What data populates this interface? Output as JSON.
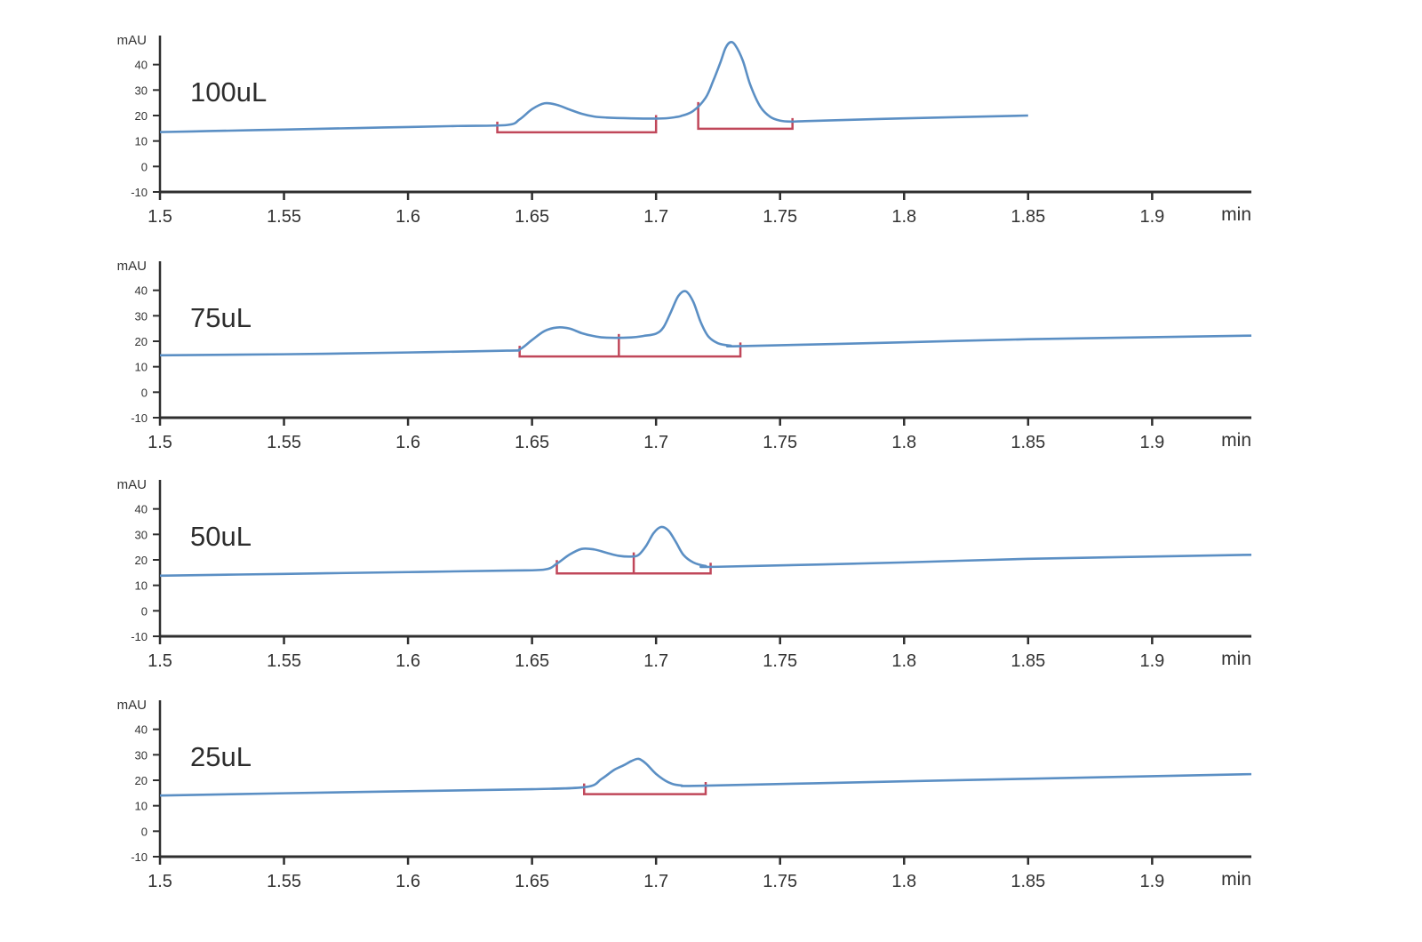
{
  "colors": {
    "trace": "#5b8fc4",
    "integration": "#c0475a",
    "axis": "#2f2f2f",
    "text": "#333333"
  },
  "chart_data": [
    {
      "type": "line",
      "label": "100uL",
      "ylabel": "mAU",
      "xlabel": "min",
      "xlim": [
        1.5,
        1.94
      ],
      "ylim": [
        -10,
        50
      ],
      "x_ticks": [
        "1.5",
        "1.55",
        "1.6",
        "1.65",
        "1.7",
        "1.75",
        "1.8",
        "1.85",
        "1.9"
      ],
      "y_ticks": [
        "-10",
        "0",
        "10",
        "20",
        "30",
        "40"
      ],
      "x": [
        1.5,
        1.52,
        1.54,
        1.56,
        1.58,
        1.6,
        1.62,
        1.64,
        1.645,
        1.65,
        1.655,
        1.66,
        1.665,
        1.67,
        1.675,
        1.68,
        1.69,
        1.7,
        1.705,
        1.71,
        1.715,
        1.72,
        1.723,
        1.726,
        1.728,
        1.73,
        1.732,
        1.735,
        1.738,
        1.742,
        1.746,
        1.75,
        1.755,
        1.76,
        1.8,
        1.85
      ],
      "y": [
        13.5,
        13.9,
        14.3,
        14.7,
        15.1,
        15.5,
        15.9,
        16.3,
        18.5,
        22.5,
        24.8,
        24.2,
        22.4,
        20.7,
        19.6,
        19.2,
        18.9,
        18.8,
        19.0,
        19.8,
        21.8,
        27.0,
        33.5,
        41.0,
        46.5,
        48.8,
        47.5,
        41.5,
        32.0,
        23.5,
        19.5,
        18.0,
        17.6,
        17.8,
        18.9,
        20.0
      ],
      "integration": [
        {
          "start": 1.636,
          "end": 1.7,
          "split": null
        },
        {
          "start": 1.717,
          "end": 1.755,
          "split": null
        }
      ]
    },
    {
      "type": "line",
      "label": "75uL",
      "ylabel": "mAU",
      "xlabel": "min",
      "xlim": [
        1.5,
        1.94
      ],
      "ylim": [
        -10,
        50
      ],
      "x_ticks": [
        "1.5",
        "1.55",
        "1.6",
        "1.65",
        "1.7",
        "1.75",
        "1.8",
        "1.85",
        "1.9"
      ],
      "y_ticks": [
        "-10",
        "0",
        "10",
        "20",
        "30",
        "40"
      ],
      "x": [
        1.5,
        1.55,
        1.6,
        1.64,
        1.645,
        1.65,
        1.655,
        1.66,
        1.665,
        1.67,
        1.675,
        1.68,
        1.69,
        1.695,
        1.7,
        1.703,
        1.706,
        1.709,
        1.712,
        1.715,
        1.718,
        1.721,
        1.725,
        1.73,
        1.735,
        1.8,
        1.85,
        1.94
      ],
      "y": [
        14.5,
        14.9,
        15.6,
        16.3,
        16.8,
        20.5,
        24.0,
        25.4,
        25.0,
        23.2,
        22.0,
        21.4,
        21.5,
        22.1,
        23.0,
        25.5,
        31.5,
        37.8,
        39.6,
        35.5,
        27.5,
        22.0,
        19.2,
        18.3,
        18.1,
        19.6,
        20.8,
        22.2
      ],
      "integration": [
        {
          "start": 1.645,
          "end": 1.734,
          "split": 1.685
        }
      ]
    },
    {
      "type": "line",
      "label": "50uL",
      "ylabel": "mAU",
      "xlabel": "min",
      "xlim": [
        1.5,
        1.94
      ],
      "ylim": [
        -10,
        50
      ],
      "x_ticks": [
        "1.5",
        "1.55",
        "1.6",
        "1.65",
        "1.7",
        "1.75",
        "1.8",
        "1.85",
        "1.9"
      ],
      "y_ticks": [
        "-10",
        "0",
        "10",
        "20",
        "30",
        "40"
      ],
      "x": [
        1.5,
        1.55,
        1.6,
        1.64,
        1.655,
        1.66,
        1.665,
        1.67,
        1.675,
        1.68,
        1.685,
        1.69,
        1.693,
        1.696,
        1.699,
        1.702,
        1.705,
        1.708,
        1.711,
        1.715,
        1.72,
        1.725,
        1.8,
        1.85,
        1.94
      ],
      "y": [
        13.8,
        14.5,
        15.2,
        15.8,
        16.2,
        18.5,
        22.0,
        24.3,
        24.1,
        22.8,
        21.6,
        21.3,
        22.0,
        25.5,
        30.5,
        32.9,
        31.5,
        27.0,
        22.0,
        19.0,
        17.6,
        17.3,
        19.0,
        20.4,
        22.0
      ],
      "integration": [
        {
          "start": 1.66,
          "end": 1.722,
          "split": 1.691
        }
      ]
    },
    {
      "type": "line",
      "label": "25uL",
      "ylabel": "mAU",
      "xlabel": "min",
      "xlim": [
        1.5,
        1.94
      ],
      "ylim": [
        -10,
        50
      ],
      "x_ticks": [
        "1.5",
        "1.55",
        "1.6",
        "1.65",
        "1.7",
        "1.75",
        "1.8",
        "1.85",
        "1.9"
      ],
      "y_ticks": [
        "-10",
        "0",
        "10",
        "20",
        "30",
        "40"
      ],
      "x": [
        1.5,
        1.55,
        1.6,
        1.65,
        1.672,
        1.678,
        1.683,
        1.687,
        1.69,
        1.693,
        1.696,
        1.7,
        1.705,
        1.71,
        1.72,
        1.8,
        1.85,
        1.94
      ],
      "y": [
        14.0,
        14.9,
        15.7,
        16.5,
        17.4,
        20.5,
        24.0,
        25.9,
        27.5,
        28.4,
        26.5,
        22.5,
        19.2,
        18.0,
        17.9,
        19.6,
        20.6,
        22.4
      ],
      "integration": [
        {
          "start": 1.671,
          "end": 1.72,
          "split": null
        }
      ]
    }
  ]
}
